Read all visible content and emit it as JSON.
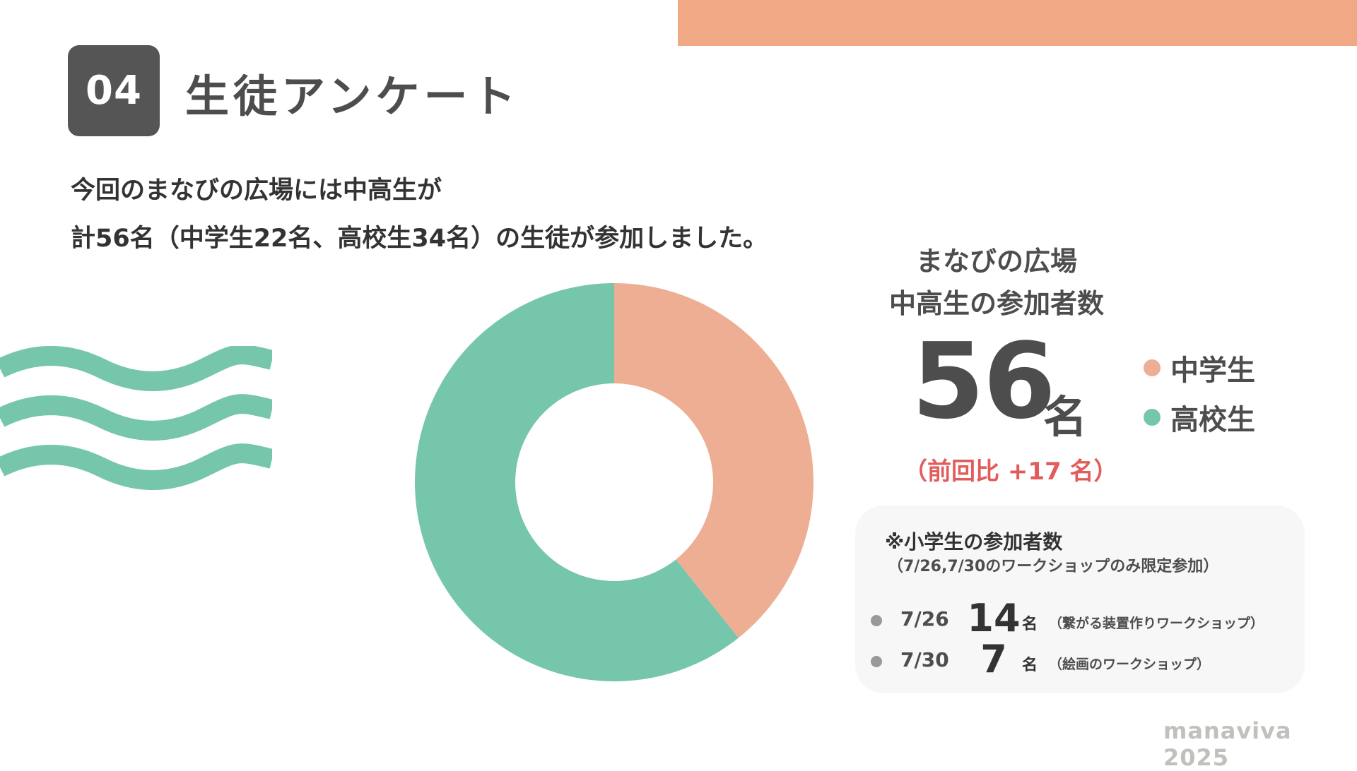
{
  "header": {
    "section_number": "04",
    "title": "生徒アンケート"
  },
  "intro": {
    "line1": "今回のまなびの広場には中高生が",
    "line2": "計56名（中学生22名、高校生34名）の生徒が参加しました。"
  },
  "stat": {
    "title_line1": "まなびの広場",
    "title_line2": "中高生の参加者数",
    "total": "56",
    "unit": "名",
    "diff": "（前回比 +17 名）"
  },
  "elementary": {
    "title": "※小学生の参加者数",
    "subtitle": "（7/26,7/30のワークショップのみ限定参加）",
    "rows": [
      {
        "date": "7/26",
        "count": "14",
        "unit": "名",
        "note": "（繋がる装置作りワークショップ）"
      },
      {
        "date": "7/30",
        "count": "7",
        "unit": "名",
        "note": "（絵画のワークショップ）"
      }
    ]
  },
  "footer": {
    "brand": "manaviva 2025"
  },
  "colors": {
    "accent_bar": "#f1a985",
    "junior_high": "#edae93",
    "high_school": "#76c6ac",
    "highlight": "#e35c5c"
  },
  "chart_data": {
    "type": "pie",
    "donut": true,
    "categories": [
      "中学生",
      "高校生"
    ],
    "values": [
      22,
      34
    ],
    "colors": [
      "#edae93",
      "#76c6ac"
    ],
    "legend_position": "right"
  }
}
